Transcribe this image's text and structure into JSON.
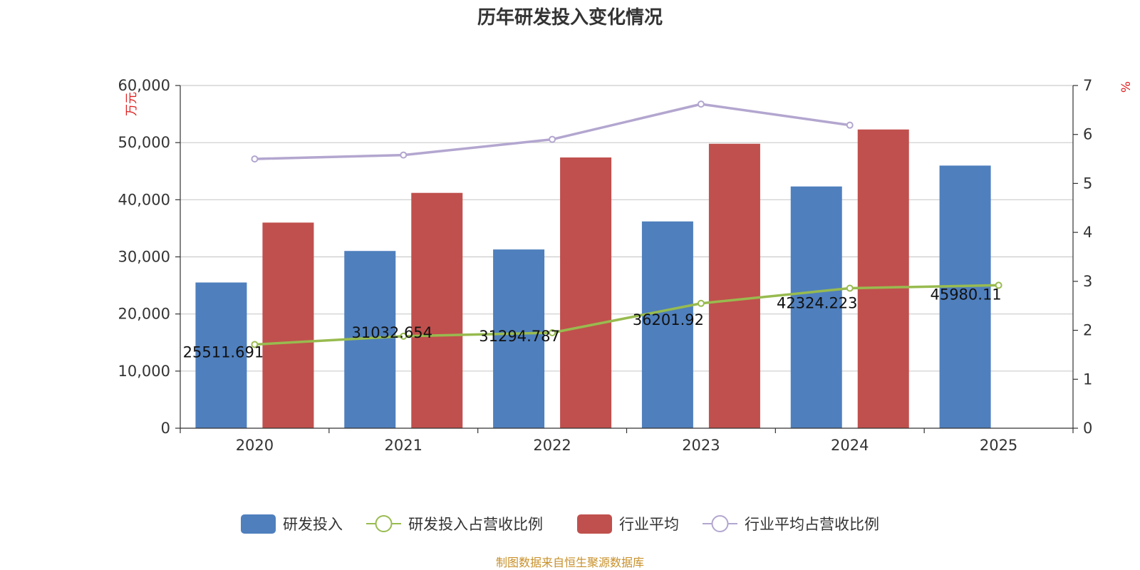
{
  "chart_data": {
    "type": "bar",
    "title": "历年研发投入变化情况",
    "categories": [
      "2020",
      "2021",
      "2022",
      "2023",
      "2024",
      "2025"
    ],
    "left_axis": {
      "unit": "万元",
      "ylim": [
        0,
        60000
      ],
      "ticks": [
        "0",
        "10,000",
        "20,000",
        "30,000",
        "40,000",
        "50,000",
        "60,000"
      ]
    },
    "right_axis": {
      "unit": "%",
      "ylim": [
        0,
        7
      ],
      "ticks": [
        "0",
        "1",
        "2",
        "3",
        "4",
        "5",
        "6",
        "7"
      ]
    },
    "series": [
      {
        "name": "研发投入",
        "type": "bar",
        "axis": "left",
        "color": "#4f7fbd",
        "values": [
          25511.691,
          31032.654,
          31294.787,
          36201.92,
          42324.223,
          45980.11
        ],
        "labels": [
          "25511.691",
          "31032.654",
          "31294.787",
          "36201.92",
          "42324.223",
          "45980.11"
        ]
      },
      {
        "name": "研发投入占营收比例",
        "type": "line",
        "axis": "right",
        "color": "#98bb4f",
        "values": [
          1.71,
          1.88,
          1.95,
          2.55,
          2.86,
          2.92
        ]
      },
      {
        "name": "行业平均",
        "type": "bar",
        "axis": "left",
        "color": "#c0504d",
        "values": [
          36000,
          41200,
          47400,
          49800,
          52300,
          null
        ]
      },
      {
        "name": "行业平均占营收比例",
        "type": "line",
        "axis": "right",
        "color": "#b3a6cf",
        "values": [
          5.5,
          5.58,
          5.9,
          6.62,
          6.19,
          null
        ]
      }
    ],
    "grid": true,
    "legend_position": "bottom"
  },
  "source": "制图数据来自恒生聚源数据库"
}
